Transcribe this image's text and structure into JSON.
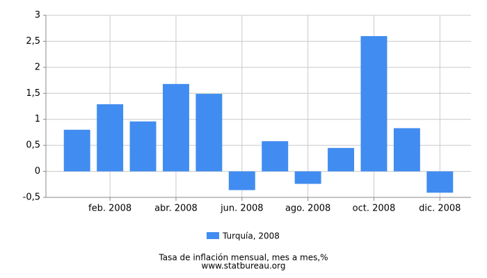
{
  "chart_data": {
    "type": "bar",
    "caption": "Tasa de inflación mensual, mes a mes,%",
    "source": "www.statbureau.org",
    "categories": [
      null,
      "feb. 2008",
      null,
      "abr. 2008",
      null,
      "jun. 2008",
      null,
      "ago. 2008",
      null,
      "oct. 2008",
      null,
      "dic. 2008"
    ],
    "series": [
      {
        "name": "Turquía, 2008",
        "color": "#418cf0",
        "values": [
          0.8,
          1.29,
          0.96,
          1.68,
          1.49,
          -0.36,
          0.58,
          -0.24,
          0.45,
          2.6,
          0.83,
          -0.41
        ]
      }
    ],
    "ylim": [
      -0.5,
      3
    ],
    "yticks": [
      {
        "value": -0.5,
        "label": "-0,5"
      },
      0,
      {
        "value": 0.5,
        "label": "0,5"
      },
      1,
      {
        "value": 1.5,
        "label": "1,5"
      },
      2,
      {
        "value": 2.5,
        "label": "2,5"
      },
      3
    ],
    "grid": true
  }
}
